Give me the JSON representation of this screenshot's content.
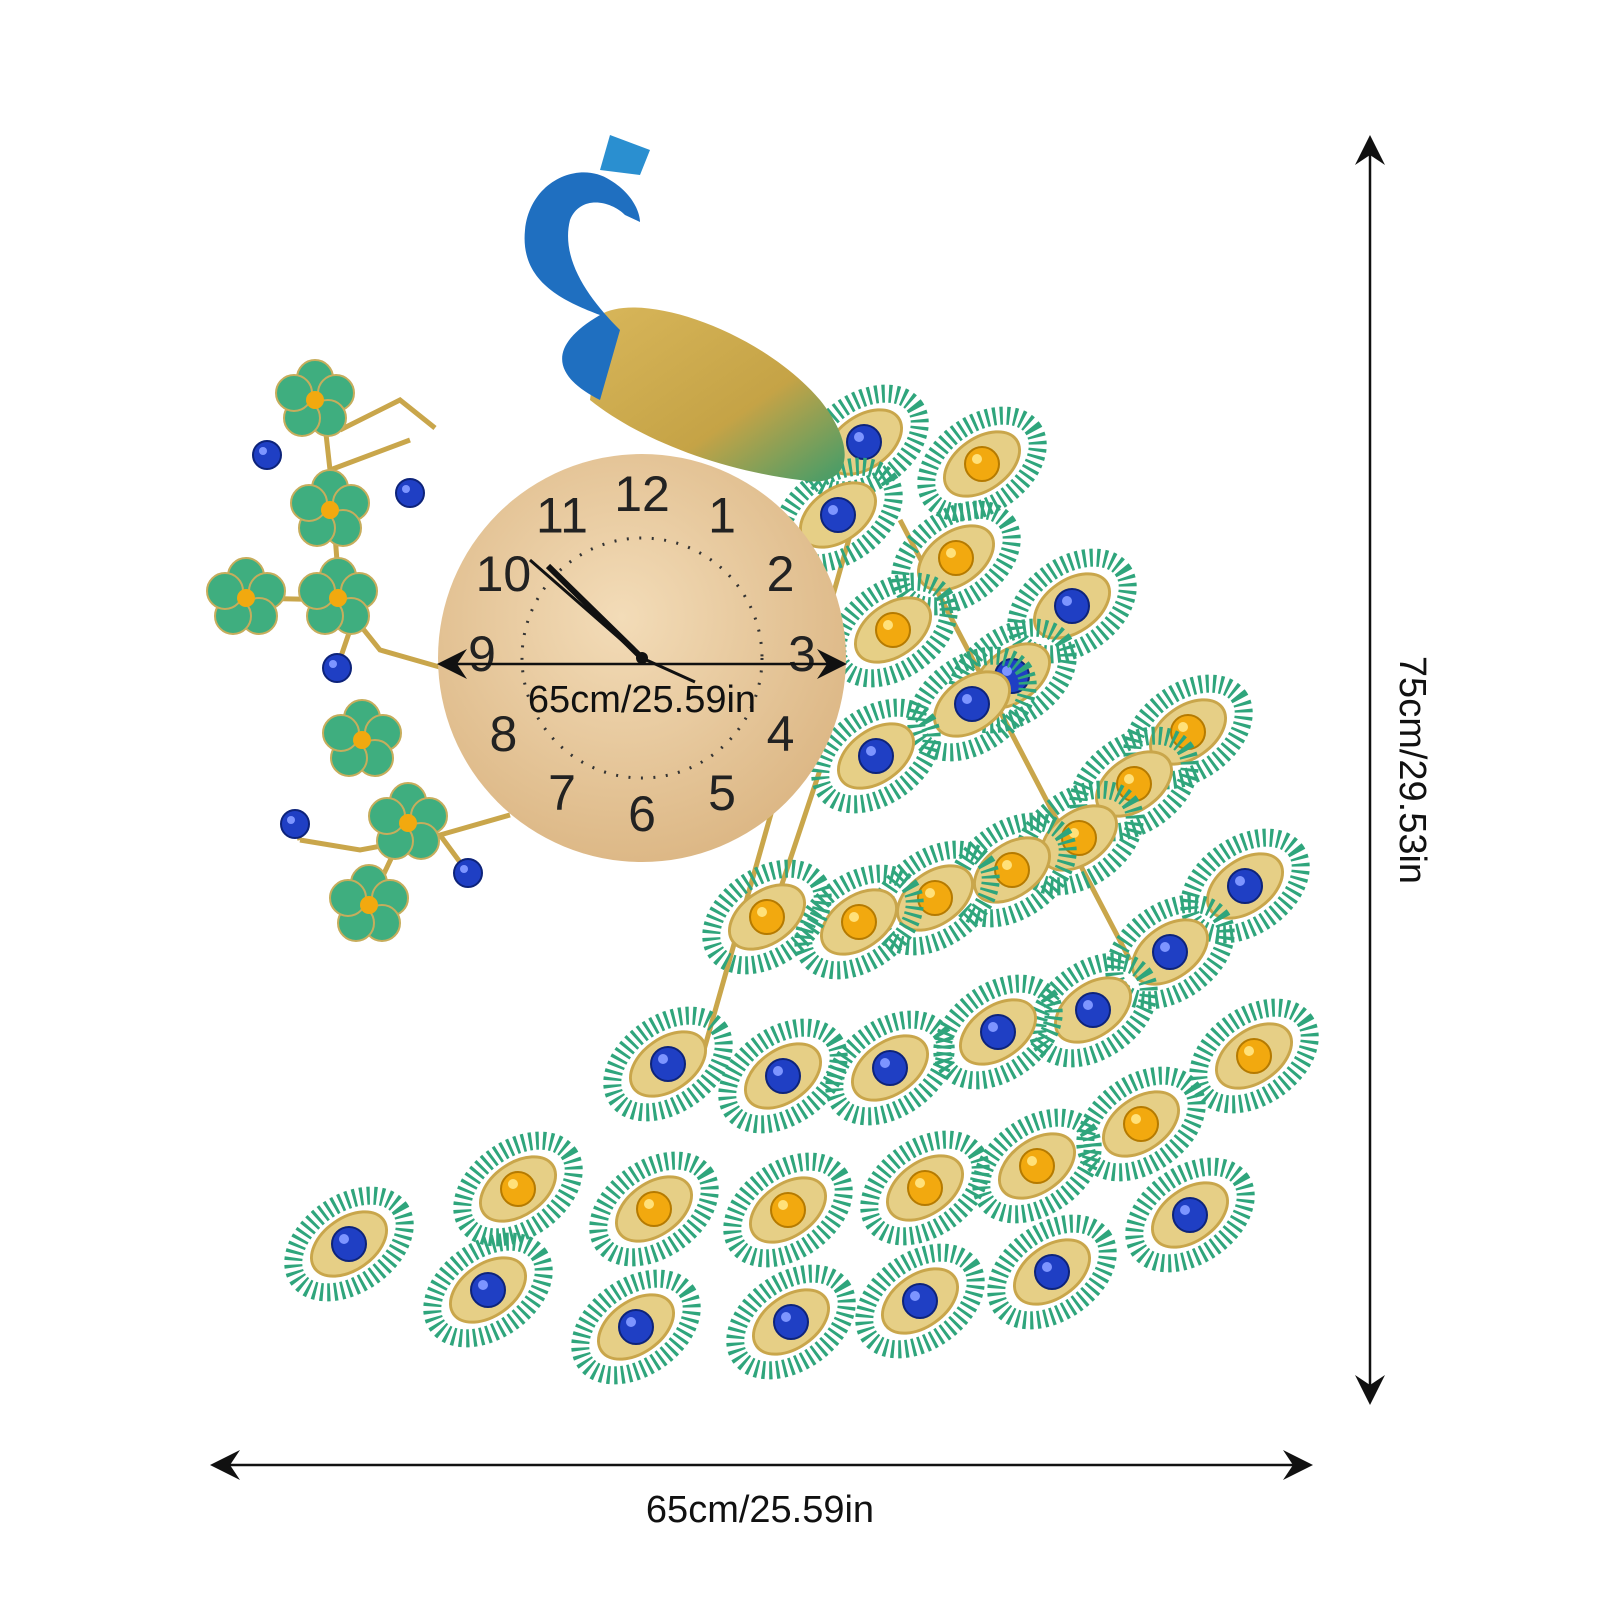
{
  "clock": {
    "numerals": [
      "12",
      "1",
      "2",
      "3",
      "4",
      "5",
      "6",
      "7",
      "8",
      "9",
      "10",
      "11"
    ]
  },
  "dimensions": {
    "clock_diameter": "65cm/25.59in",
    "width": "65cm/25.59in",
    "height": "75cm/29.53in"
  }
}
